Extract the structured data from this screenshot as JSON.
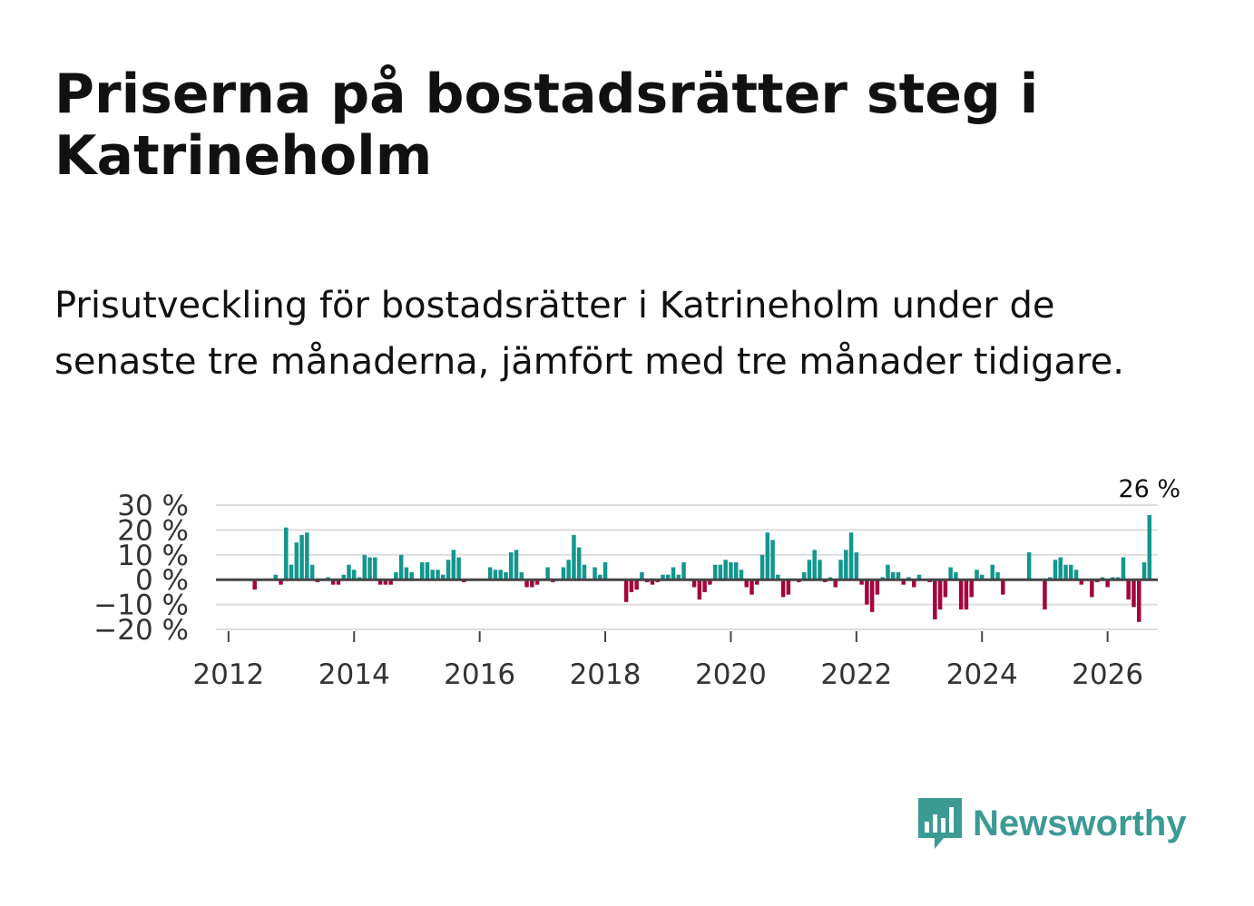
{
  "title": "Priserna på bostadsrätter steg i Katrineholm",
  "subtitle": "Prisutveckling för bostadsrätter i Katrineholm under de senaste tre månaderna, jämfört med tre månader tidigare.",
  "brand": "Newsworthy",
  "colors": {
    "positive": "#12978f",
    "negative": "#a4043e",
    "zero_line": "#444444",
    "grid": "#dddddd",
    "brand": "#3c9a94"
  },
  "chart_data": {
    "type": "bar",
    "title": "",
    "xlabel": "",
    "ylabel": "",
    "ylim": [
      -20,
      30
    ],
    "xlim": [
      2011.8,
      2026.8
    ],
    "y_ticks": [
      30,
      20,
      10,
      0,
      -10,
      -20
    ],
    "y_tick_labels": [
      "30 %",
      "20 %",
      "10 %",
      "0 %",
      "−10 %",
      "−20 %"
    ],
    "x_ticks": [
      2012,
      2014,
      2016,
      2018,
      2020,
      2022,
      2024,
      2026
    ],
    "x_tick_labels": [
      "2012",
      "2014",
      "2016",
      "2018",
      "2020",
      "2022",
      "2024",
      "2026"
    ],
    "start": [
      2012,
      1
    ],
    "values": [
      null,
      null,
      null,
      null,
      null,
      -4,
      null,
      null,
      null,
      2,
      -2,
      21,
      6,
      15,
      18,
      19,
      6,
      -1,
      null,
      1,
      -2,
      -2,
      2,
      6,
      4,
      1,
      10,
      9,
      9,
      -2,
      -2,
      -2,
      3,
      10,
      5,
      3,
      0,
      7,
      7,
      4,
      4,
      2,
      8,
      12,
      9,
      -1,
      null,
      null,
      null,
      null,
      5,
      4,
      4,
      3,
      11,
      12,
      3,
      -3,
      -3,
      -2,
      0,
      5,
      -1,
      0,
      5,
      8,
      18,
      13,
      6,
      0,
      5,
      2,
      7,
      null,
      null,
      null,
      -9,
      -5,
      -4,
      3,
      -1,
      -2,
      -1,
      2,
      2,
      5,
      2,
      7,
      0,
      -3,
      -8,
      -5,
      -2,
      6,
      6,
      8,
      7,
      7,
      4,
      -3,
      -6,
      -2,
      10,
      19,
      16,
      2,
      -7,
      -6,
      0,
      -1,
      3,
      8,
      12,
      8,
      -1,
      1,
      -3,
      8,
      12,
      19,
      11,
      -2,
      -10,
      -13,
      -6,
      1,
      6,
      3,
      3,
      -2,
      1,
      -3,
      2,
      0,
      -1,
      -16,
      -12,
      -7,
      5,
      3,
      -12,
      -12,
      -7,
      4,
      2,
      0,
      6,
      3,
      -6,
      null,
      null,
      null,
      null,
      11,
      null,
      null,
      -12,
      1,
      8,
      9,
      6,
      6,
      4,
      -2,
      0,
      -7,
      -1,
      1,
      -3,
      1,
      1,
      9,
      -8,
      -11,
      -17,
      7,
      26
    ],
    "annotation": {
      "label": "26 %",
      "value": 26
    }
  }
}
